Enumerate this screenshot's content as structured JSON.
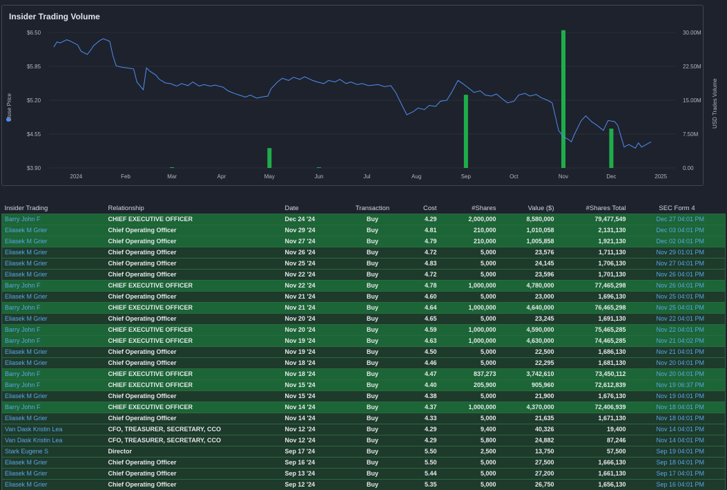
{
  "chart_data": {
    "type": "line",
    "title": "Insider Trading Volume",
    "ylabel_left": "Close Price",
    "ylabel_right": "USD Trades Volume",
    "ylim_left": [
      3.9,
      6.5
    ],
    "ylim_right": [
      0,
      30000000
    ],
    "yticks_left": [
      "$6.50",
      "$5.85",
      "$5.20",
      "$4.55",
      "$3.90"
    ],
    "yticks_right": [
      "30.00M",
      "22.50M",
      "15.00M",
      "7.50M",
      "0.00"
    ],
    "x_start": "2023-12-15",
    "x_end": "2025-01-10",
    "xticks": [
      {
        "label": "2024",
        "date": "2024-01-01"
      },
      {
        "label": "Feb",
        "date": "2024-02-01"
      },
      {
        "label": "Mar",
        "date": "2024-03-01"
      },
      {
        "label": "Apr",
        "date": "2024-04-01"
      },
      {
        "label": "May",
        "date": "2024-05-01"
      },
      {
        "label": "Jun",
        "date": "2024-06-01"
      },
      {
        "label": "Jul",
        "date": "2024-07-01"
      },
      {
        "label": "Aug",
        "date": "2024-08-01"
      },
      {
        "label": "Sep",
        "date": "2024-09-01"
      },
      {
        "label": "Oct",
        "date": "2024-10-01"
      },
      {
        "label": "Nov",
        "date": "2024-11-01"
      },
      {
        "label": "Dec",
        "date": "2024-12-01"
      },
      {
        "label": "2025",
        "date": "2025-01-01"
      }
    ],
    "price_series": {
      "name": "Close Price",
      "color": "#4f8ff0",
      "points": [
        [
          "2023-12-18",
          6.22
        ],
        [
          "2023-12-20",
          6.32
        ],
        [
          "2023-12-22",
          6.3
        ],
        [
          "2023-12-26",
          6.36
        ],
        [
          "2023-12-28",
          6.34
        ],
        [
          "2024-01-02",
          6.26
        ],
        [
          "2024-01-04",
          6.14
        ],
        [
          "2024-01-08",
          6.08
        ],
        [
          "2024-01-10",
          6.16
        ],
        [
          "2024-01-12",
          6.25
        ],
        [
          "2024-01-16",
          6.35
        ],
        [
          "2024-01-18",
          6.38
        ],
        [
          "2024-01-22",
          6.33
        ],
        [
          "2024-01-24",
          6.05
        ],
        [
          "2024-01-26",
          5.86
        ],
        [
          "2024-01-30",
          5.83
        ],
        [
          "2024-02-02",
          5.82
        ],
        [
          "2024-02-06",
          5.8
        ],
        [
          "2024-02-08",
          5.55
        ],
        [
          "2024-02-12",
          5.4
        ],
        [
          "2024-02-14",
          5.82
        ],
        [
          "2024-02-16",
          5.76
        ],
        [
          "2024-02-20",
          5.68
        ],
        [
          "2024-02-22",
          5.6
        ],
        [
          "2024-02-26",
          5.53
        ],
        [
          "2024-02-29",
          5.52
        ],
        [
          "2024-03-04",
          5.47
        ],
        [
          "2024-03-07",
          5.52
        ],
        [
          "2024-03-11",
          5.48
        ],
        [
          "2024-03-14",
          5.55
        ],
        [
          "2024-03-18",
          5.47
        ],
        [
          "2024-03-21",
          5.5
        ],
        [
          "2024-03-25",
          5.47
        ],
        [
          "2024-03-28",
          5.49
        ],
        [
          "2024-04-02",
          5.45
        ],
        [
          "2024-04-05",
          5.38
        ],
        [
          "2024-04-09",
          5.33
        ],
        [
          "2024-04-12",
          5.3
        ],
        [
          "2024-04-16",
          5.26
        ],
        [
          "2024-04-19",
          5.3
        ],
        [
          "2024-04-23",
          5.24
        ],
        [
          "2024-04-26",
          5.26
        ],
        [
          "2024-04-30",
          5.28
        ],
        [
          "2024-05-02",
          5.42
        ],
        [
          "2024-05-06",
          5.55
        ],
        [
          "2024-05-09",
          5.62
        ],
        [
          "2024-05-13",
          5.58
        ],
        [
          "2024-05-16",
          5.64
        ],
        [
          "2024-05-20",
          5.6
        ],
        [
          "2024-05-23",
          5.65
        ],
        [
          "2024-05-28",
          5.58
        ],
        [
          "2024-05-31",
          5.55
        ],
        [
          "2024-06-04",
          5.52
        ],
        [
          "2024-06-07",
          5.58
        ],
        [
          "2024-06-11",
          5.55
        ],
        [
          "2024-06-14",
          5.6
        ],
        [
          "2024-06-18",
          5.52
        ],
        [
          "2024-06-21",
          5.55
        ],
        [
          "2024-06-25",
          5.5
        ],
        [
          "2024-06-28",
          5.52
        ],
        [
          "2024-07-02",
          5.48
        ],
        [
          "2024-07-08",
          5.5
        ],
        [
          "2024-07-12",
          5.46
        ],
        [
          "2024-07-16",
          5.48
        ],
        [
          "2024-07-19",
          5.35
        ],
        [
          "2024-07-23",
          5.1
        ],
        [
          "2024-07-26",
          4.92
        ],
        [
          "2024-07-30",
          4.98
        ],
        [
          "2024-08-02",
          5.05
        ],
        [
          "2024-08-06",
          5.02
        ],
        [
          "2024-08-09",
          5.1
        ],
        [
          "2024-08-13",
          5.08
        ],
        [
          "2024-08-16",
          5.18
        ],
        [
          "2024-08-20",
          5.2
        ],
        [
          "2024-08-23",
          5.35
        ],
        [
          "2024-08-27",
          5.58
        ],
        [
          "2024-08-30",
          5.52
        ],
        [
          "2024-09-04",
          5.4
        ],
        [
          "2024-09-06",
          5.35
        ],
        [
          "2024-09-10",
          5.38
        ],
        [
          "2024-09-13",
          5.3
        ],
        [
          "2024-09-17",
          5.28
        ],
        [
          "2024-09-20",
          5.32
        ],
        [
          "2024-09-24",
          5.22
        ],
        [
          "2024-09-27",
          5.15
        ],
        [
          "2024-10-01",
          5.18
        ],
        [
          "2024-10-04",
          5.3
        ],
        [
          "2024-10-08",
          5.33
        ],
        [
          "2024-10-11",
          5.28
        ],
        [
          "2024-10-15",
          5.31
        ],
        [
          "2024-10-18",
          5.25
        ],
        [
          "2024-10-22",
          5.2
        ],
        [
          "2024-10-25",
          5.15
        ],
        [
          "2024-10-29",
          4.62
        ],
        [
          "2024-11-01",
          4.5
        ],
        [
          "2024-11-04",
          4.45
        ],
        [
          "2024-11-06",
          4.4
        ],
        [
          "2024-11-08",
          4.55
        ],
        [
          "2024-11-12",
          4.8
        ],
        [
          "2024-11-15",
          4.9
        ],
        [
          "2024-11-19",
          4.78
        ],
        [
          "2024-11-22",
          4.72
        ],
        [
          "2024-11-26",
          4.62
        ],
        [
          "2024-11-29",
          4.81
        ],
        [
          "2024-12-03",
          4.79
        ],
        [
          "2024-12-05",
          4.72
        ],
        [
          "2024-12-09",
          4.3
        ],
        [
          "2024-12-12",
          4.35
        ],
        [
          "2024-12-16",
          4.28
        ],
        [
          "2024-12-18",
          4.38
        ],
        [
          "2024-12-20",
          4.3
        ],
        [
          "2024-12-24",
          4.37
        ],
        [
          "2024-12-26",
          4.4
        ]
      ]
    },
    "volume_series": {
      "name": "USD Trades Volume",
      "color": "#1fad4c",
      "bars": [
        [
          "2024-03-01",
          150000
        ],
        [
          "2024-05-01",
          4400000
        ],
        [
          "2024-06-01",
          150000
        ],
        [
          "2024-09-01",
          16200000
        ],
        [
          "2024-11-01",
          30500000
        ],
        [
          "2024-12-01",
          8700000
        ]
      ]
    }
  },
  "table": {
    "headers": [
      "Insider Trading",
      "Relationship",
      "Date",
      "Transaction",
      "Cost",
      "#Shares",
      "Value ($)",
      "#Shares Total",
      "SEC Form 4"
    ],
    "rows": [
      {
        "insider": "Barry John F",
        "relationship": "CHIEF EXECUTIVE OFFICER",
        "date": "Dec 24 '24",
        "transaction": "Buy",
        "cost": "4.29",
        "shares": "2,000,000",
        "value": "8,580,000",
        "shares_total": "79,477,549",
        "sec": "Dec 27 04:01 PM",
        "style": "green"
      },
      {
        "insider": "Eliasek M Grier",
        "relationship": "Chief Operating Officer",
        "date": "Nov 29 '24",
        "transaction": "Buy",
        "cost": "4.81",
        "shares": "210,000",
        "value": "1,010,058",
        "shares_total": "2,131,130",
        "sec": "Dec 03 04:01 PM",
        "style": "green"
      },
      {
        "insider": "Eliasek M Grier",
        "relationship": "Chief Operating Officer",
        "date": "Nov 27 '24",
        "transaction": "Buy",
        "cost": "4.79",
        "shares": "210,000",
        "value": "1,005,858",
        "shares_total": "1,921,130",
        "sec": "Dec 02 04:01 PM",
        "style": "green"
      },
      {
        "insider": "Eliasek M Grier",
        "relationship": "Chief Operating Officer",
        "date": "Nov 26 '24",
        "transaction": "Buy",
        "cost": "4.72",
        "shares": "5,000",
        "value": "23,576",
        "shares_total": "1,711,130",
        "sec": "Nov 29 01:01 PM",
        "style": "dark"
      },
      {
        "insider": "Eliasek M Grier",
        "relationship": "Chief Operating Officer",
        "date": "Nov 25 '24",
        "transaction": "Buy",
        "cost": "4.83",
        "shares": "5,000",
        "value": "24,145",
        "shares_total": "1,706,130",
        "sec": "Nov 27 04:01 PM",
        "style": "dark"
      },
      {
        "insider": "Eliasek M Grier",
        "relationship": "Chief Operating Officer",
        "date": "Nov 22 '24",
        "transaction": "Buy",
        "cost": "4.72",
        "shares": "5,000",
        "value": "23,596",
        "shares_total": "1,701,130",
        "sec": "Nov 26 04:01 PM",
        "style": "dark"
      },
      {
        "insider": "Barry John F",
        "relationship": "CHIEF EXECUTIVE OFFICER",
        "date": "Nov 22 '24",
        "transaction": "Buy",
        "cost": "4.78",
        "shares": "1,000,000",
        "value": "4,780,000",
        "shares_total": "77,465,298",
        "sec": "Nov 26 04:01 PM",
        "style": "green"
      },
      {
        "insider": "Eliasek M Grier",
        "relationship": "Chief Operating Officer",
        "date": "Nov 21 '24",
        "transaction": "Buy",
        "cost": "4.60",
        "shares": "5,000",
        "value": "23,000",
        "shares_total": "1,696,130",
        "sec": "Nov 25 04:01 PM",
        "style": "dark"
      },
      {
        "insider": "Barry John F",
        "relationship": "CHIEF EXECUTIVE OFFICER",
        "date": "Nov 21 '24",
        "transaction": "Buy",
        "cost": "4.64",
        "shares": "1,000,000",
        "value": "4,640,000",
        "shares_total": "76,465,298",
        "sec": "Nov 25 04:01 PM",
        "style": "green"
      },
      {
        "insider": "Eliasek M Grier",
        "relationship": "Chief Operating Officer",
        "date": "Nov 20 '24",
        "transaction": "Buy",
        "cost": "4.65",
        "shares": "5,000",
        "value": "23,245",
        "shares_total": "1,691,130",
        "sec": "Nov 22 04:01 PM",
        "style": "dark"
      },
      {
        "insider": "Barry John F",
        "relationship": "CHIEF EXECUTIVE OFFICER",
        "date": "Nov 20 '24",
        "transaction": "Buy",
        "cost": "4.59",
        "shares": "1,000,000",
        "value": "4,590,000",
        "shares_total": "75,465,285",
        "sec": "Nov 22 04:01 PM",
        "style": "green"
      },
      {
        "insider": "Barry John F",
        "relationship": "CHIEF EXECUTIVE OFFICER",
        "date": "Nov 19 '24",
        "transaction": "Buy",
        "cost": "4.63",
        "shares": "1,000,000",
        "value": "4,630,000",
        "shares_total": "74,465,285",
        "sec": "Nov 21 04:02 PM",
        "style": "green"
      },
      {
        "insider": "Eliasek M Grier",
        "relationship": "Chief Operating Officer",
        "date": "Nov 19 '24",
        "transaction": "Buy",
        "cost": "4.50",
        "shares": "5,000",
        "value": "22,500",
        "shares_total": "1,686,130",
        "sec": "Nov 21 04:01 PM",
        "style": "dark"
      },
      {
        "insider": "Eliasek M Grier",
        "relationship": "Chief Operating Officer",
        "date": "Nov 18 '24",
        "transaction": "Buy",
        "cost": "4.46",
        "shares": "5,000",
        "value": "22,295",
        "shares_total": "1,681,130",
        "sec": "Nov 20 04:01 PM",
        "style": "dark"
      },
      {
        "insider": "Barry John F",
        "relationship": "CHIEF EXECUTIVE OFFICER",
        "date": "Nov 18 '24",
        "transaction": "Buy",
        "cost": "4.47",
        "shares": "837,273",
        "value": "3,742,610",
        "shares_total": "73,450,112",
        "sec": "Nov 20 04:01 PM",
        "style": "green"
      },
      {
        "insider": "Barry John F",
        "relationship": "CHIEF EXECUTIVE OFFICER",
        "date": "Nov 15 '24",
        "transaction": "Buy",
        "cost": "4.40",
        "shares": "205,900",
        "value": "905,960",
        "shares_total": "72,612,839",
        "sec": "Nov 19 06:37 PM",
        "style": "green"
      },
      {
        "insider": "Eliasek M Grier",
        "relationship": "Chief Operating Officer",
        "date": "Nov 15 '24",
        "transaction": "Buy",
        "cost": "4.38",
        "shares": "5,000",
        "value": "21,900",
        "shares_total": "1,676,130",
        "sec": "Nov 19 04:01 PM",
        "style": "dark"
      },
      {
        "insider": "Barry John F",
        "relationship": "CHIEF EXECUTIVE OFFICER",
        "date": "Nov 14 '24",
        "transaction": "Buy",
        "cost": "4.37",
        "shares": "1,000,000",
        "value": "4,370,000",
        "shares_total": "72,406,939",
        "sec": "Nov 18 04:01 PM",
        "style": "green"
      },
      {
        "insider": "Eliasek M Grier",
        "relationship": "Chief Operating Officer",
        "date": "Nov 14 '24",
        "transaction": "Buy",
        "cost": "4.33",
        "shares": "5,000",
        "value": "21,635",
        "shares_total": "1,671,130",
        "sec": "Nov 18 04:01 PM",
        "style": "dark"
      },
      {
        "insider": "Van Dask Kristin Lea",
        "relationship": "CFO, TREASURER, SECRETARY, CCO",
        "date": "Nov 12 '24",
        "transaction": "Buy",
        "cost": "4.29",
        "shares": "9,400",
        "value": "40,326",
        "shares_total": "19,400",
        "sec": "Nov 14 04:01 PM",
        "style": "dark"
      },
      {
        "insider": "Van Dask Kristin Lea",
        "relationship": "CFO, TREASURER, SECRETARY, CCO",
        "date": "Nov 12 '24",
        "transaction": "Buy",
        "cost": "4.29",
        "shares": "5,800",
        "value": "24,882",
        "shares_total": "87,246",
        "sec": "Nov 14 04:01 PM",
        "style": "dark"
      },
      {
        "insider": "Stark Eugene S",
        "relationship": "Director",
        "date": "Sep 17 '24",
        "transaction": "Buy",
        "cost": "5.50",
        "shares": "2,500",
        "value": "13,750",
        "shares_total": "57,500",
        "sec": "Sep 19 04:01 PM",
        "style": "dark"
      },
      {
        "insider": "Eliasek M Grier",
        "relationship": "Chief Operating Officer",
        "date": "Sep 16 '24",
        "transaction": "Buy",
        "cost": "5.50",
        "shares": "5,000",
        "value": "27,500",
        "shares_total": "1,666,130",
        "sec": "Sep 18 04:01 PM",
        "style": "dark"
      },
      {
        "insider": "Eliasek M Grier",
        "relationship": "Chief Operating Officer",
        "date": "Sep 13 '24",
        "transaction": "Buy",
        "cost": "5.44",
        "shares": "5,000",
        "value": "27,200",
        "shares_total": "1,661,130",
        "sec": "Sep 17 04:01 PM",
        "style": "dark"
      },
      {
        "insider": "Eliasek M Grier",
        "relationship": "Chief Operating Officer",
        "date": "Sep 12 '24",
        "transaction": "Buy",
        "cost": "5.35",
        "shares": "5,000",
        "value": "26,750",
        "shares_total": "1,656,130",
        "sec": "Sep 16 04:01 PM",
        "style": "dark"
      }
    ]
  }
}
